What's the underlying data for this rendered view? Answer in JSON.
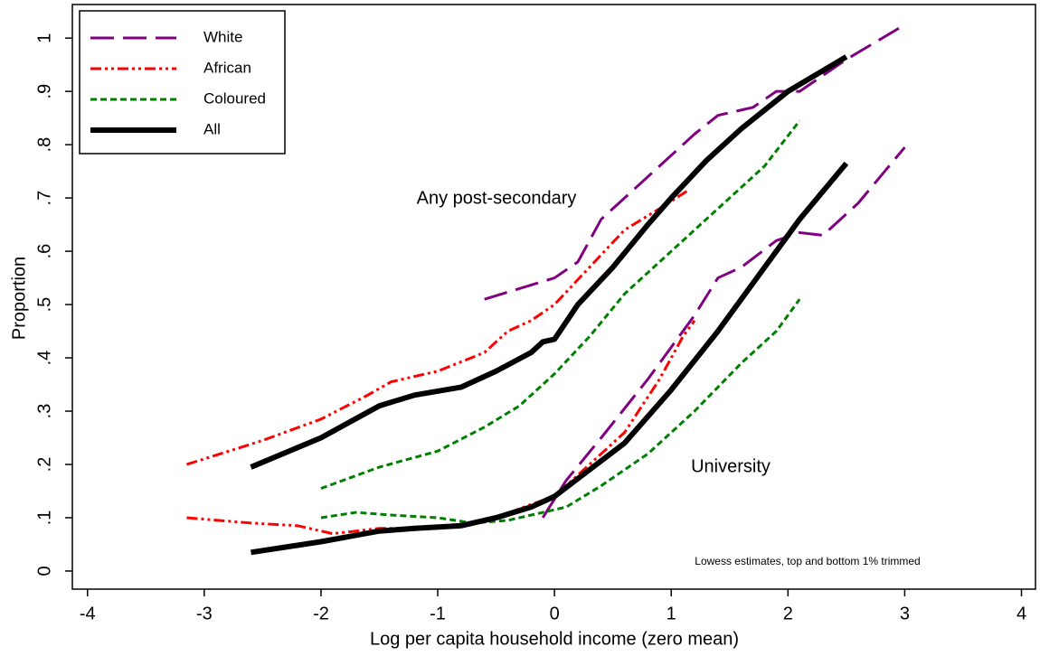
{
  "chart_data": {
    "type": "line",
    "x_label": "Log per capita household income (zero mean)",
    "y_label": "Proportion",
    "note": "Lowess estimates, top and bottom 1% trimmed",
    "annotations": [
      "Any post-secondary",
      "University"
    ],
    "xlim": [
      -4.13,
      4.12
    ],
    "ylim": [
      -0.034,
      1.063
    ],
    "xticks": [
      -4,
      -3,
      -2,
      -1,
      0,
      1,
      2,
      3,
      4
    ],
    "yticks": [
      0,
      {
        "value": 0.1,
        "label": ".1"
      },
      {
        "value": 0.2,
        "label": ".2"
      },
      {
        "value": 0.3,
        "label": ".3"
      },
      {
        "value": 0.4,
        "label": ".4"
      },
      {
        "value": 0.5,
        "label": ".5"
      },
      {
        "value": 0.6,
        "label": ".6"
      },
      {
        "value": 0.7,
        "label": ".7"
      },
      {
        "value": 0.8,
        "label": ".8"
      },
      {
        "value": 0.9,
        "label": ".9"
      },
      1
    ],
    "legend": "top-left",
    "series": [
      {
        "name": "White",
        "color": "#800080",
        "style": "longdash",
        "curves": [
          {
            "x": [
              -0.6,
              0,
              0.2,
              0.4,
              0.7,
              1,
              1.2,
              1.4,
              1.7,
              1.9,
              2.1,
              2.5,
              3
            ],
            "values": [
              0.51,
              0.55,
              0.58,
              0.66,
              0.72,
              0.78,
              0.82,
              0.855,
              0.87,
              0.9,
              0.9,
              0.96,
              1.025
            ]
          },
          {
            "x": [
              -0.1,
              0.1,
              0.4,
              0.8,
              1,
              1.2,
              1.4,
              1.6,
              1.9,
              2.1,
              2.3,
              2.6,
              3
            ],
            "values": [
              0.1,
              0.17,
              0.25,
              0.36,
              0.42,
              0.48,
              0.55,
              0.57,
              0.62,
              0.635,
              0.63,
              0.69,
              0.795
            ]
          }
        ]
      },
      {
        "name": "African",
        "color": "#ff0000",
        "style": "dashdot",
        "curves": [
          {
            "x": [
              -3.15,
              -2.5,
              -2,
              -1.6,
              -1.4,
              -1,
              -0.6,
              -0.4,
              -0.2,
              0,
              0.3,
              0.6,
              0.9,
              1.15
            ],
            "values": [
              0.2,
              0.245,
              0.285,
              0.33,
              0.355,
              0.375,
              0.41,
              0.45,
              0.47,
              0.5,
              0.57,
              0.64,
              0.68,
              0.715
            ]
          },
          {
            "x": [
              -3.15,
              -2.6,
              -2.2,
              -1.9,
              -1.5,
              -1,
              -0.5,
              -0.2,
              0,
              0.3,
              0.6,
              0.9,
              1.1,
              1.2
            ],
            "values": [
              0.1,
              0.09,
              0.085,
              0.07,
              0.08,
              0.08,
              0.1,
              0.125,
              0.14,
              0.2,
              0.26,
              0.36,
              0.44,
              0.47
            ]
          }
        ]
      },
      {
        "name": "Coloured",
        "color": "#008000",
        "style": "shortdash",
        "curves": [
          {
            "x": [
              -2,
              -1.5,
              -1,
              -0.6,
              -0.3,
              0,
              0.3,
              0.6,
              1,
              1.3,
              1.6,
              1.8,
              2.1
            ],
            "values": [
              0.155,
              0.195,
              0.225,
              0.27,
              0.31,
              0.37,
              0.44,
              0.52,
              0.6,
              0.66,
              0.72,
              0.76,
              0.845
            ]
          },
          {
            "x": [
              -2,
              -1.7,
              -1.4,
              -1,
              -0.7,
              -0.4,
              -0.1,
              0.1,
              0.4,
              0.8,
              1.2,
              1.6,
              1.9,
              2.1
            ],
            "values": [
              0.1,
              0.11,
              0.105,
              0.1,
              0.09,
              0.095,
              0.11,
              0.12,
              0.16,
              0.22,
              0.3,
              0.39,
              0.45,
              0.51
            ]
          }
        ]
      },
      {
        "name": "All",
        "color": "#000000",
        "style": "solid",
        "curves": [
          {
            "x": [
              -2.6,
              -2,
              -1.5,
              -1.2,
              -0.8,
              -0.5,
              -0.2,
              -0.1,
              0,
              0.2,
              0.5,
              0.8,
              1,
              1.3,
              1.6,
              2,
              2.5
            ],
            "values": [
              0.195,
              0.25,
              0.31,
              0.33,
              0.345,
              0.375,
              0.41,
              0.43,
              0.435,
              0.5,
              0.57,
              0.65,
              0.7,
              0.77,
              0.83,
              0.9,
              0.965
            ]
          },
          {
            "x": [
              -2.6,
              -2,
              -1.5,
              -1.2,
              -0.8,
              -0.5,
              -0.2,
              0,
              0.3,
              0.6,
              1,
              1.4,
              1.8,
              2.1,
              2.5
            ],
            "values": [
              0.035,
              0.055,
              0.075,
              0.08,
              0.085,
              0.1,
              0.12,
              0.14,
              0.19,
              0.24,
              0.34,
              0.45,
              0.57,
              0.66,
              0.765
            ]
          }
        ]
      }
    ]
  }
}
